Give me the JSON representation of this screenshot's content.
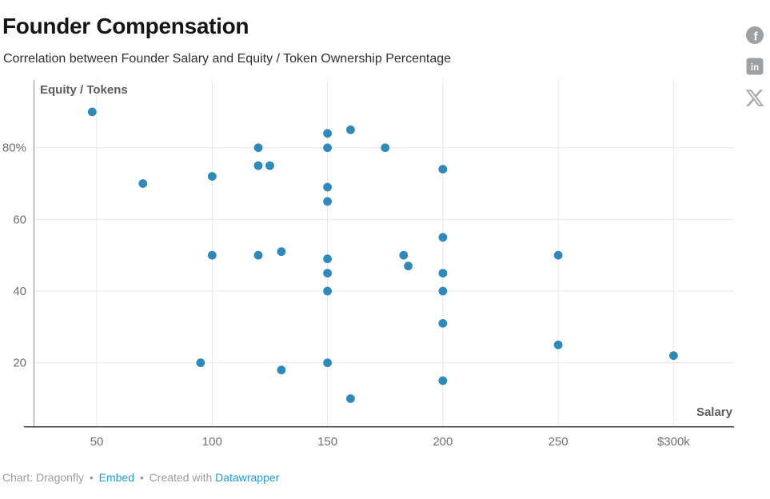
{
  "header": {
    "title": "Founder Compensation",
    "subtitle": "Correlation between Founder Salary and Equity / Token Ownership Percentage"
  },
  "share": {
    "facebook_glyph": "f",
    "linkedin_glyph": "in",
    "icon_color": "#9da1a4",
    "x_icon_color": "#a8acaf"
  },
  "chart_data": {
    "type": "scatter",
    "title": "Founder Compensation",
    "subtitle": "Correlation between Founder Salary and Equity / Token Ownership Percentage",
    "xlabel": "Salary",
    "ylabel": "Equity / Tokens",
    "x_ticks": [
      {
        "value": 50,
        "label": "50"
      },
      {
        "value": 100,
        "label": "100"
      },
      {
        "value": 150,
        "label": "150"
      },
      {
        "value": 200,
        "label": "200"
      },
      {
        "value": 250,
        "label": "250"
      },
      {
        "value": 300,
        "label": "$300k"
      }
    ],
    "y_ticks": [
      {
        "value": 20,
        "label": "20"
      },
      {
        "value": 40,
        "label": "40"
      },
      {
        "value": 60,
        "label": "60"
      },
      {
        "value": 80,
        "label": "80%"
      }
    ],
    "xlim": [
      22.6,
      326.9
    ],
    "ylim": [
      2.3,
      98.9
    ],
    "grid": true,
    "legend": "none",
    "point_color": "#2d8abb",
    "points": [
      {
        "salary": 48,
        "equity": 90
      },
      {
        "salary": 70,
        "equity": 70
      },
      {
        "salary": 95,
        "equity": 20
      },
      {
        "salary": 100,
        "equity": 72
      },
      {
        "salary": 100,
        "equity": 50
      },
      {
        "salary": 120,
        "equity": 80
      },
      {
        "salary": 120,
        "equity": 75
      },
      {
        "salary": 120,
        "equity": 50
      },
      {
        "salary": 125,
        "equity": 75
      },
      {
        "salary": 130,
        "equity": 51
      },
      {
        "salary": 130,
        "equity": 18
      },
      {
        "salary": 150,
        "equity": 84
      },
      {
        "salary": 150,
        "equity": 80
      },
      {
        "salary": 150,
        "equity": 69
      },
      {
        "salary": 150,
        "equity": 65
      },
      {
        "salary": 150,
        "equity": 49
      },
      {
        "salary": 150,
        "equity": 45
      },
      {
        "salary": 150,
        "equity": 40
      },
      {
        "salary": 150,
        "equity": 20
      },
      {
        "salary": 160,
        "equity": 85
      },
      {
        "salary": 160,
        "equity": 10
      },
      {
        "salary": 175,
        "equity": 80
      },
      {
        "salary": 183,
        "equity": 50
      },
      {
        "salary": 185,
        "equity": 47
      },
      {
        "salary": 200,
        "equity": 74
      },
      {
        "salary": 200,
        "equity": 55
      },
      {
        "salary": 200,
        "equity": 45
      },
      {
        "salary": 200,
        "equity": 40
      },
      {
        "salary": 200,
        "equity": 31
      },
      {
        "salary": 200,
        "equity": 15
      },
      {
        "salary": 250,
        "equity": 50
      },
      {
        "salary": 250,
        "equity": 25
      },
      {
        "salary": 300,
        "equity": 22
      }
    ],
    "style": {
      "grid_color": "#e8e8e8",
      "y_axis_line_color": "#8c8c8c",
      "x_axis_line_color": "#3f3f3f",
      "tick_label_color": "#6f6f6f",
      "axis_title_color": "#5c5c5c"
    }
  },
  "footer": {
    "attribution": "Chart: Dragonfly",
    "separator": "•",
    "embed_link": "Embed",
    "created_with": "Created with",
    "datawrapper_link": "Datawrapper",
    "link_color": "#1e9cd8"
  }
}
